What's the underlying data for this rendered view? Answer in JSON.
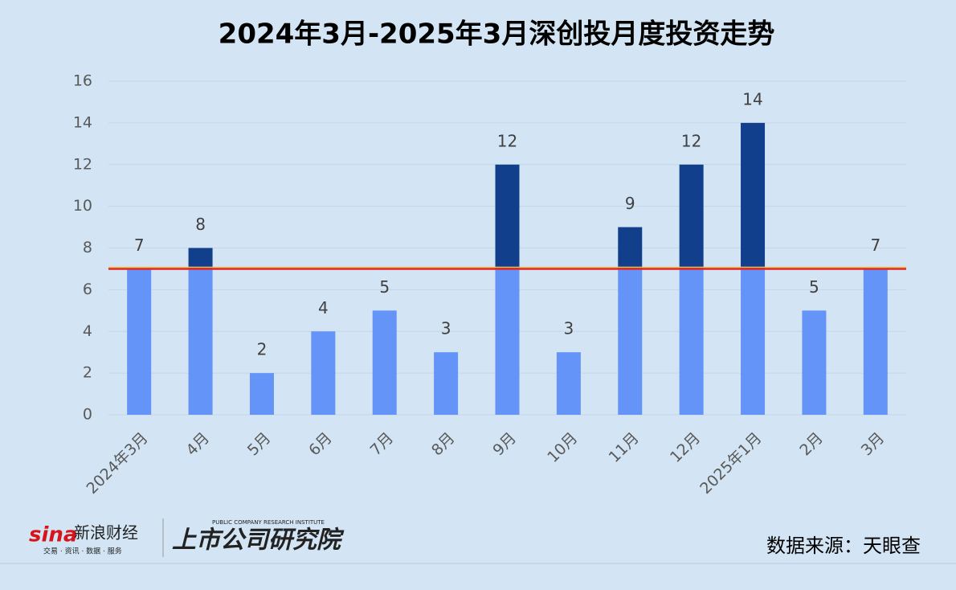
{
  "chart_data": {
    "type": "bar",
    "title": "2024年3月-2025年3月深创投月度投资走势",
    "categories": [
      "2024年3月",
      "4月",
      "5月",
      "6月",
      "7月",
      "8月",
      "9月",
      "10月",
      "11月",
      "12月",
      "2025年1月",
      "2月",
      "3月"
    ],
    "values": [
      7,
      8,
      2,
      4,
      5,
      3,
      12,
      3,
      9,
      12,
      14,
      5,
      7
    ],
    "color": "#6494f7",
    "above_color": "#123f8c",
    "reference_line": {
      "value": 7,
      "color": "#e3262b"
    },
    "ylim": [
      0,
      16
    ],
    "yticks": [
      0,
      2,
      4,
      6,
      8,
      10,
      12,
      14,
      16
    ],
    "grid": true,
    "source": "数据来源：天眼查"
  },
  "branding": {
    "sina_logo": "sina",
    "sina_name": "新浪财经",
    "sina_slogan": "交易 · 资讯 · 数据 · 服务",
    "institute": "上市公司研究院",
    "institute_en": "PUBLIC COMPANY RESEARCH INSTITUTE"
  }
}
